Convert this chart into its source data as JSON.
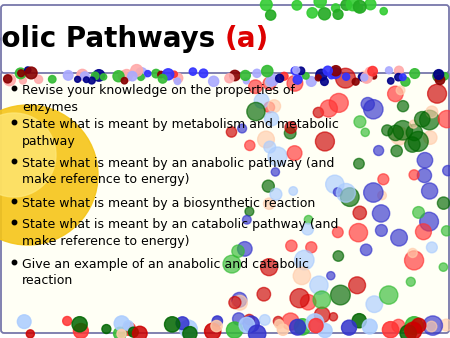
{
  "title_black": "Metabolic Pathways ",
  "title_red": "(a)",
  "title_fontsize": 20,
  "bullet_fontsize": 9.0,
  "bullet_points": [
    "Revise your knowledge on the properties of\nenzymes",
    "State what is meant by metabolism and metabolic\npathway",
    "State what is meant by an anabolic pathway (and\nmake reference to energy)",
    "State what is meant by a biosynthetic reaction",
    "State what is meant by an catabolic pathway (and\nmake reference to energy)",
    "Give an example of an anabolic and catabolic\nreaction"
  ],
  "background_color": "#ffffff",
  "title_box_facecolor": "#ffffff",
  "title_box_edgecolor": "#7777aa",
  "content_box_facecolor": "#fffff5",
  "content_box_edgecolor": "#7777aa",
  "text_color": "#000000",
  "red_color": "#dd0000",
  "gold_color": "#F5C518",
  "gold_highlight": "#FFE878"
}
